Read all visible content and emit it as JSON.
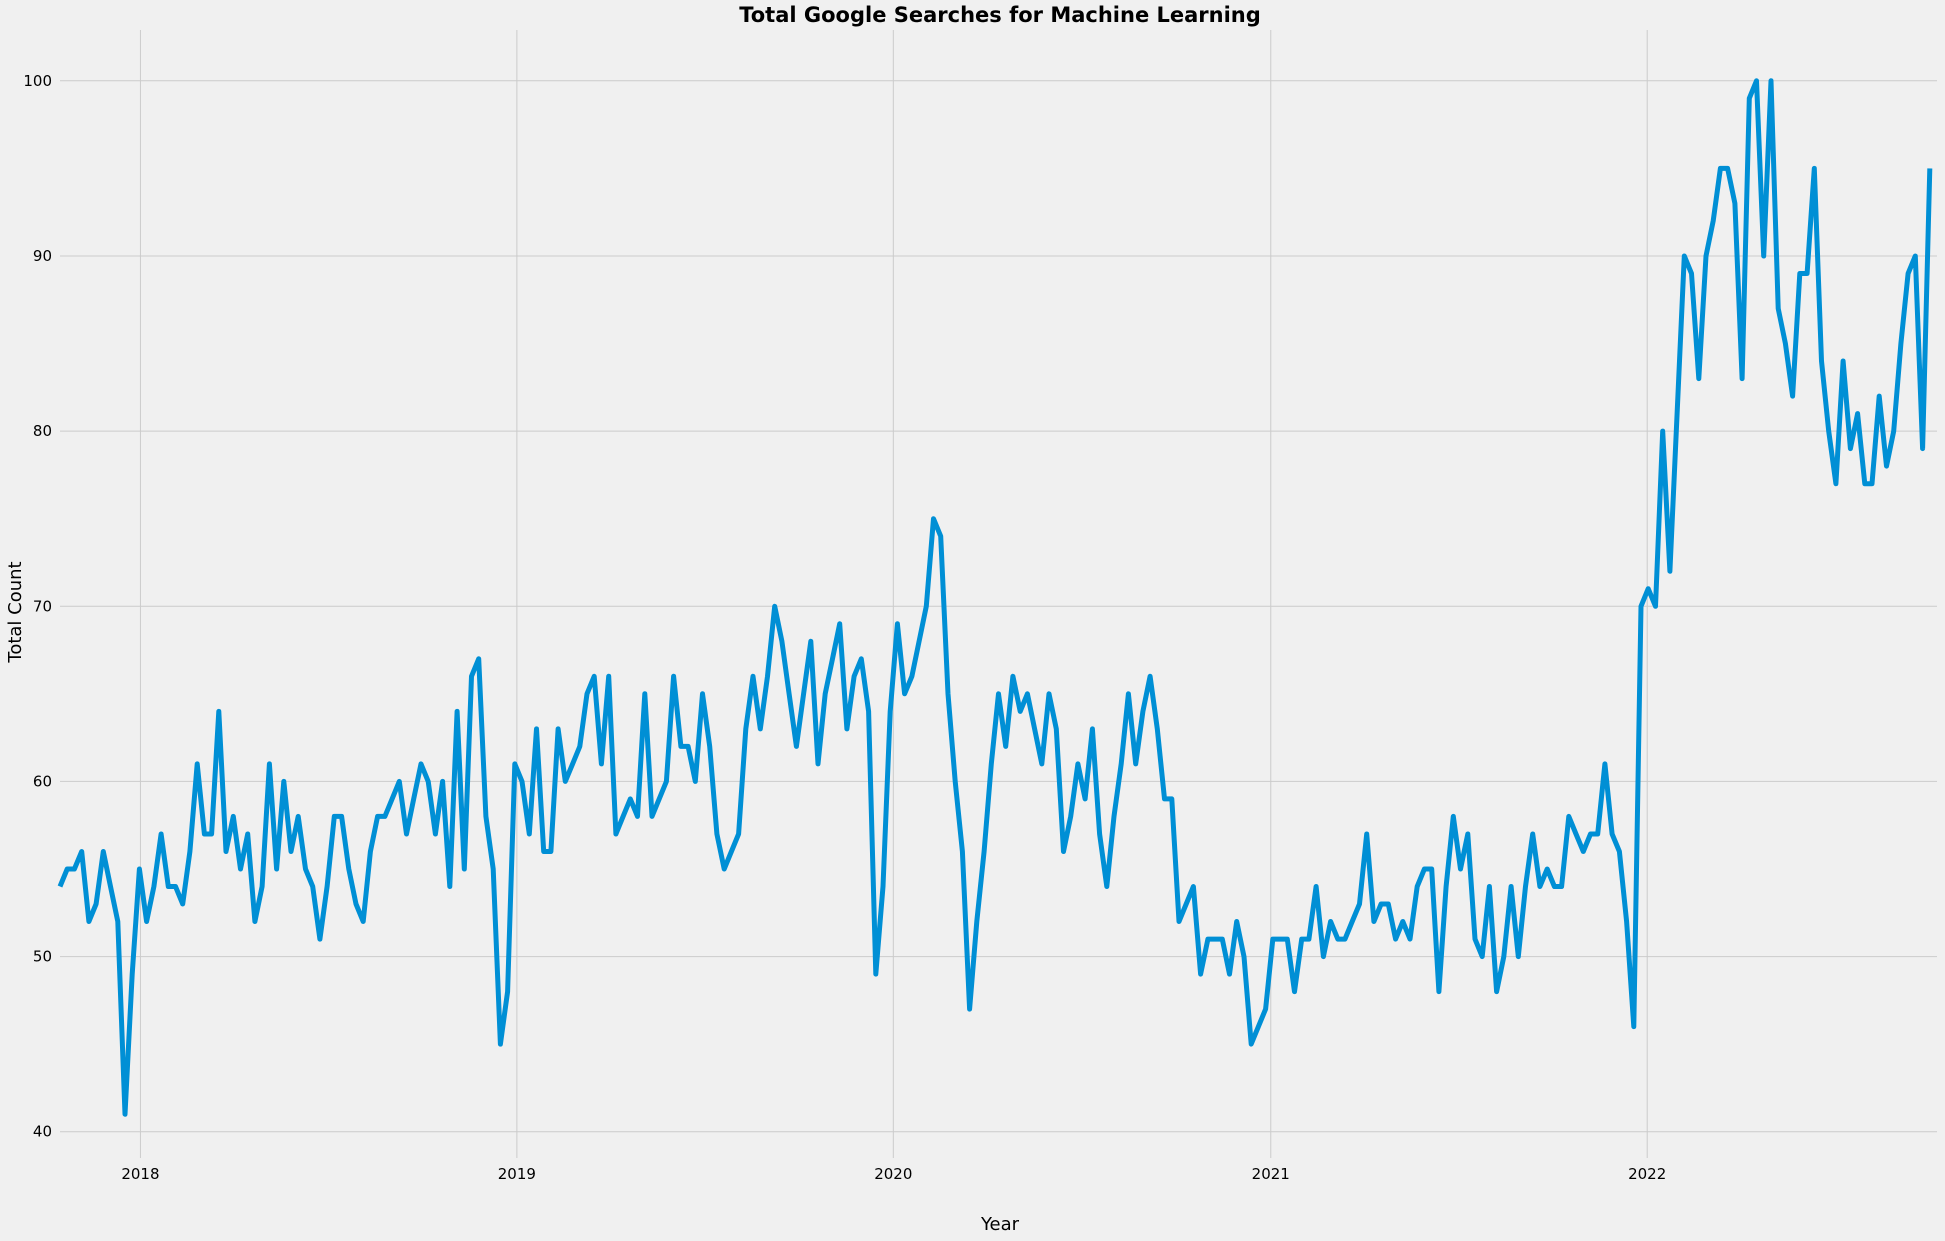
{
  "chart_data": {
    "type": "line",
    "title": "Total Google Searches for Machine Learning",
    "xlabel": "Year",
    "ylabel": "Total Count",
    "x_ticks": [
      "2018",
      "2019",
      "2020",
      "2021",
      "2022"
    ],
    "y_ticks": [
      40,
      50,
      60,
      70,
      80,
      90,
      100
    ],
    "xlim": [
      "2017-10-15",
      "2022-10-09"
    ],
    "ylim": [
      38.5,
      102.9
    ],
    "grid": true,
    "x_start": "2017-10-15",
    "x_step_days": 7,
    "series": [
      {
        "values": [
          54,
          55,
          55,
          56,
          52,
          53,
          56,
          54,
          52,
          41,
          49,
          55,
          52,
          54,
          57,
          54,
          54,
          53,
          56,
          61,
          57,
          57,
          64,
          56,
          58,
          55,
          57,
          52,
          54,
          61,
          55,
          60,
          56,
          58,
          55,
          54,
          51,
          54,
          58,
          58,
          55,
          53,
          52,
          56,
          58,
          58,
          59,
          60,
          57,
          59,
          61,
          60,
          57,
          60,
          54,
          64,
          55,
          66,
          67,
          58,
          55,
          45,
          48,
          61,
          60,
          57,
          63,
          56,
          56,
          63,
          60,
          61,
          62,
          65,
          66,
          61,
          66,
          57,
          58,
          59,
          58,
          65,
          58,
          59,
          60,
          66,
          62,
          62,
          60,
          65,
          62,
          57,
          55,
          56,
          57,
          63,
          66,
          63,
          66,
          70,
          68,
          65,
          62,
          65,
          68,
          61,
          65,
          67,
          69,
          63,
          66,
          67,
          64,
          49,
          54,
          64,
          69,
          65,
          66,
          68,
          70,
          75,
          74,
          65,
          60,
          56,
          47,
          52,
          56,
          61,
          65,
          62,
          66,
          64,
          65,
          63,
          61,
          65,
          63,
          56,
          58,
          61,
          59,
          63,
          57,
          54,
          58,
          61,
          65,
          61,
          64,
          66,
          63,
          59,
          59,
          52,
          53,
          54,
          49,
          51,
          51,
          51,
          49,
          52,
          50,
          45,
          46,
          47,
          51,
          51,
          51,
          48,
          51,
          51,
          54,
          50,
          52,
          51,
          51,
          52,
          53,
          57,
          52,
          53,
          53,
          51,
          52,
          51,
          54,
          55,
          55,
          48,
          54,
          58,
          55,
          57,
          51,
          50,
          54,
          48,
          50,
          54,
          50,
          54,
          57,
          54,
          55,
          54,
          54,
          58,
          57,
          56,
          57,
          57,
          61,
          57,
          56,
          52,
          46,
          70,
          71,
          70,
          80,
          72,
          81,
          90,
          89,
          83,
          90,
          92,
          95,
          95,
          93,
          83,
          99,
          100,
          90,
          100,
          87,
          85,
          82,
          89,
          89,
          95,
          84,
          80,
          77,
          84,
          79,
          81,
          77,
          77,
          82,
          78,
          80,
          85,
          89,
          90,
          79,
          95
        ]
      }
    ]
  }
}
